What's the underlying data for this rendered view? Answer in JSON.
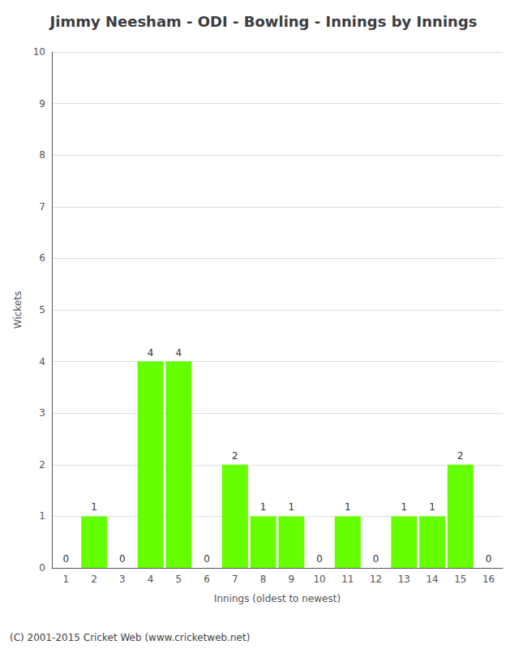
{
  "chart_data": {
    "type": "bar",
    "title": "Jimmy Neesham - ODI - Bowling - Innings by Innings",
    "xlabel": "Innings (oldest to newest)",
    "ylabel": "Wickets",
    "categories": [
      "1",
      "2",
      "3",
      "4",
      "5",
      "6",
      "7",
      "8",
      "9",
      "10",
      "11",
      "12",
      "13",
      "14",
      "15",
      "16"
    ],
    "values": [
      0,
      1,
      0,
      4,
      4,
      0,
      2,
      1,
      1,
      0,
      1,
      0,
      1,
      1,
      2,
      0
    ],
    "color": "#66ff00",
    "ylim": [
      0,
      10
    ],
    "yticks": [
      0,
      1,
      2,
      3,
      4,
      5,
      6,
      7,
      8,
      9,
      10
    ],
    "grid": true,
    "data_labels": true,
    "annotations": [
      "(C) 2001-2015 Cricket Web (www.cricketweb.net)"
    ]
  }
}
